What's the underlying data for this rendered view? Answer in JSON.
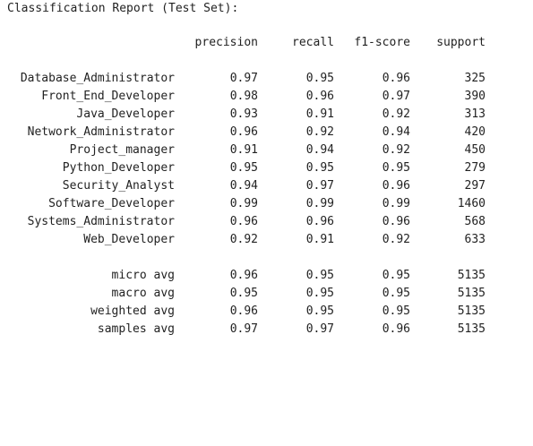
{
  "title": "Classification Report (Test Set):",
  "columns": {
    "precision": "precision",
    "recall": "recall",
    "f1": "f1-score",
    "support": "support"
  },
  "classes": [
    {
      "label": "Database_Administrator",
      "precision": "0.97",
      "recall": "0.95",
      "f1": "0.96",
      "support": "325"
    },
    {
      "label": "Front_End_Developer",
      "precision": "0.98",
      "recall": "0.96",
      "f1": "0.97",
      "support": "390"
    },
    {
      "label": "Java_Developer",
      "precision": "0.93",
      "recall": "0.91",
      "f1": "0.92",
      "support": "313"
    },
    {
      "label": "Network_Administrator",
      "precision": "0.96",
      "recall": "0.92",
      "f1": "0.94",
      "support": "420"
    },
    {
      "label": "Project_manager",
      "precision": "0.91",
      "recall": "0.94",
      "f1": "0.92",
      "support": "450"
    },
    {
      "label": "Python_Developer",
      "precision": "0.95",
      "recall": "0.95",
      "f1": "0.95",
      "support": "279"
    },
    {
      "label": "Security_Analyst",
      "precision": "0.94",
      "recall": "0.97",
      "f1": "0.96",
      "support": "297"
    },
    {
      "label": "Software_Developer",
      "precision": "0.99",
      "recall": "0.99",
      "f1": "0.99",
      "support": "1460"
    },
    {
      "label": "Systems_Administrator",
      "precision": "0.96",
      "recall": "0.96",
      "f1": "0.96",
      "support": "568"
    },
    {
      "label": "Web_Developer",
      "precision": "0.92",
      "recall": "0.91",
      "f1": "0.92",
      "support": "633"
    }
  ],
  "averages": [
    {
      "label": "micro avg",
      "precision": "0.96",
      "recall": "0.95",
      "f1": "0.95",
      "support": "5135"
    },
    {
      "label": "macro avg",
      "precision": "0.95",
      "recall": "0.95",
      "f1": "0.95",
      "support": "5135"
    },
    {
      "label": "weighted avg",
      "precision": "0.96",
      "recall": "0.95",
      "f1": "0.95",
      "support": "5135"
    },
    {
      "label": "samples avg",
      "precision": "0.97",
      "recall": "0.97",
      "f1": "0.96",
      "support": "5135"
    }
  ]
}
